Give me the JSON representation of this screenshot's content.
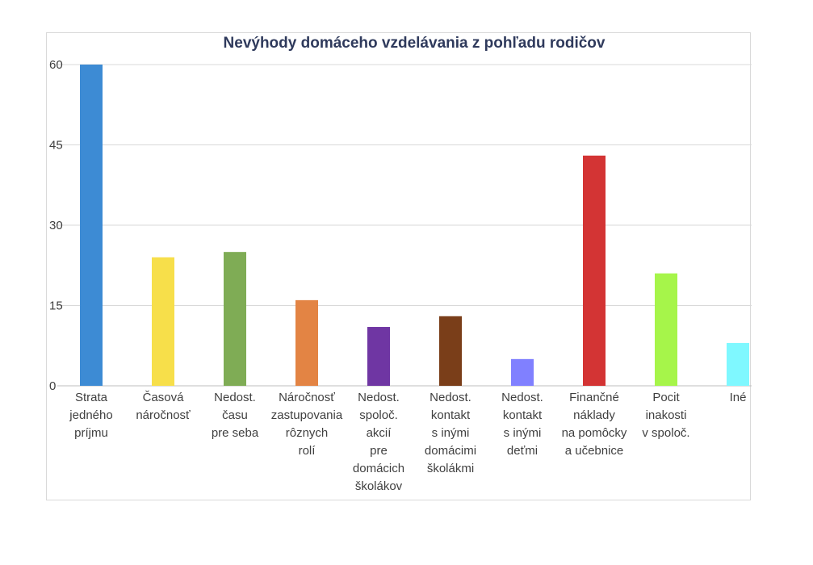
{
  "chart_data": {
    "type": "bar",
    "title": "Nevýhody domáceho vzdelávania z pohľadu rodičov",
    "xlabel": "",
    "ylabel": "",
    "ylim": [
      0,
      60
    ],
    "yticks": [
      0,
      15,
      30,
      45,
      60
    ],
    "grid": true,
    "legend": "none",
    "categories": [
      "Strata jedného príjmu",
      "Časová náročnosť",
      "Nedost. času pre seba",
      "Náročnosť zastupovania rôznych rolí",
      "Nedost. spoloč. akcií pre domácich školákov",
      "Nedost. kontakt s inými domácimi školákmi",
      "Nedost. kontakt s inými deťmi",
      "Finančné náklady na pomôcky a učebnice",
      "Pocit inakosti v spoloč.",
      "Iné"
    ],
    "category_lines": [
      [
        "Strata",
        "jedného",
        "príjmu"
      ],
      [
        "Časová",
        "náročnosť"
      ],
      [
        "Nedost.",
        "času",
        "pre seba"
      ],
      [
        "Náročnosť",
        "zastupovania",
        "rôznych",
        "rolí"
      ],
      [
        "Nedost.",
        "spoloč.",
        "akcií",
        "pre",
        "domácich",
        "školákov"
      ],
      [
        "Nedost.",
        "kontakt",
        "s inými",
        "domácimi",
        "školákmi"
      ],
      [
        "Nedost.",
        "kontakt",
        "s inými",
        "deťmi"
      ],
      [
        "Finančné",
        "náklady",
        "na pomôcky",
        "a učebnice"
      ],
      [
        "Pocit",
        "inakosti",
        "v spoloč."
      ],
      [
        "Iné"
      ]
    ],
    "values": [
      60,
      24,
      25,
      16,
      11,
      13,
      5,
      43,
      21,
      8
    ],
    "colors": [
      "#3d8bd4",
      "#f7df4a",
      "#7fac55",
      "#e38444",
      "#6f36a3",
      "#7a3e19",
      "#8080ff",
      "#d33434",
      "#a6f54a",
      "#7ff8ff"
    ]
  }
}
